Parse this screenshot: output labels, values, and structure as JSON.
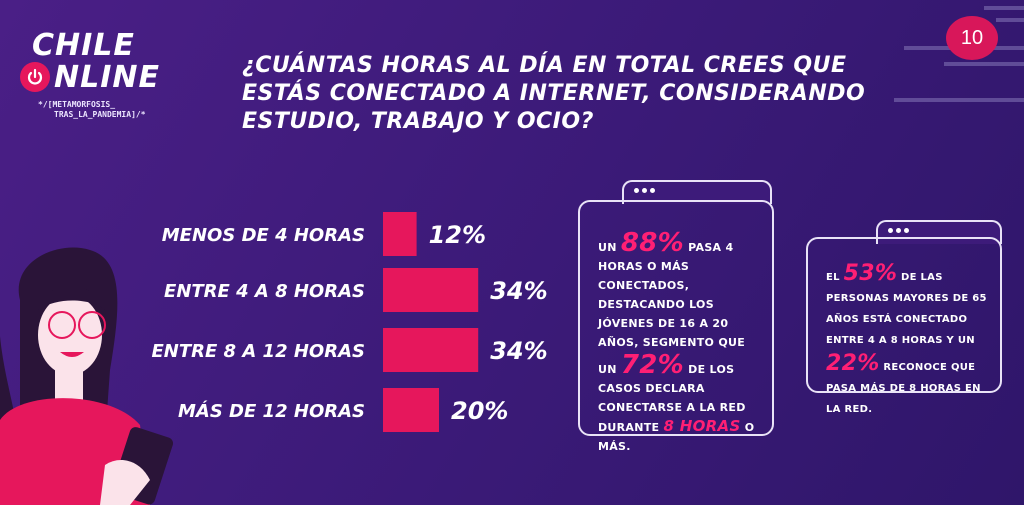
{
  "page_number": "10",
  "logo": {
    "line1": "CHILE",
    "line2": "NLINE",
    "tag1": "*/[METAMORFOSIS_",
    "tag2": "TRAS_LA_PANDEMIA]/*",
    "icon": "power-icon"
  },
  "title": "¿CUÁNTAS HORAS AL DÍA EN TOTAL CREES QUE ESTÁS CONECTADO A INTERNET, CONSIDERANDO ESTUDIO, TRABAJO Y OCIO?",
  "colors": {
    "bar": "#e6175c",
    "highlight": "#ff1f74",
    "background": "#3d1b7a"
  },
  "chart_data": {
    "type": "bar",
    "orientation": "horizontal",
    "categories": [
      "MENOS DE 4 HORAS",
      "ENTRE 4 A 8 HORAS",
      "ENTRE 8 A 12 HORAS",
      "MÁS DE 12 HORAS"
    ],
    "values": [
      12,
      34,
      34,
      20
    ],
    "value_labels": [
      "12%",
      "34%",
      "34%",
      "20%"
    ],
    "unit": "%"
  },
  "card1": {
    "p1": "UN",
    "h1": "88%",
    "p2": "PASA 4 HORAS O MÁS CONECTADOS, DESTACANDO LOS JÓVENES DE 16 A 20 AÑOS, SEGMENTO QUE UN",
    "h2": "72%",
    "p3": "DE LOS CASOS DECLARA CONECTARSE A LA RED DURANTE",
    "h3": "8 HORAS",
    "p4": "O MÁS."
  },
  "card2": {
    "p1": "EL",
    "h1": "53%",
    "p2": "DE LAS PERSONAS MAYORES DE 65 AÑOS ESTÁ CONECTADO ENTRE 4 A 8 HORAS Y UN",
    "h2": "22%",
    "p3": "RECONOCE QUE PASA MÁS DE 8 HORAS EN LA RED."
  }
}
